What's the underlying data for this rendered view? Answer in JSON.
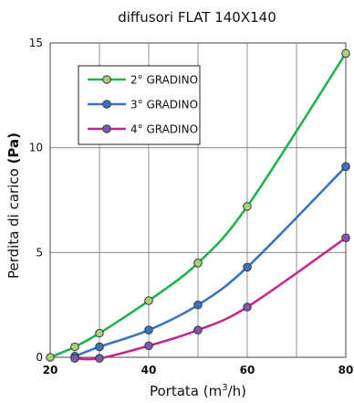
{
  "chart_data": {
    "type": "line",
    "title": "diffusori FLAT 140X140",
    "xlabel": {
      "prefix": "Portata (m",
      "sup": "3",
      "suffix": "/h)"
    },
    "ylabel": {
      "prefix": "Perdita di carico ",
      "bold": "(Pa)"
    },
    "xlim": [
      20,
      80
    ],
    "ylim": [
      0,
      15
    ],
    "x_ticks": [
      20,
      30,
      40,
      50,
      60,
      70,
      80
    ],
    "x_tick_labels": [
      "20",
      "40",
      "60",
      "80"
    ],
    "y_ticks": [
      0,
      5,
      10,
      15
    ],
    "grid": true,
    "legend_position": "top-left",
    "series": [
      {
        "name": "2° GRADINO",
        "color": "#20b24c",
        "marker_fill": "#a6d17a",
        "points": [
          [
            20,
            0
          ],
          [
            25,
            0.5
          ],
          [
            30,
            1.15
          ],
          [
            40,
            2.7
          ],
          [
            50,
            4.5
          ],
          [
            60,
            7.2
          ],
          [
            80,
            14.5
          ]
        ]
      },
      {
        "name": "3° GRADINO",
        "color": "#3b73c0",
        "marker_fill": "#3b73c0",
        "points": [
          [
            25,
            0.05
          ],
          [
            30,
            0.5
          ],
          [
            40,
            1.3
          ],
          [
            50,
            2.5
          ],
          [
            60,
            4.3
          ],
          [
            80,
            9.1
          ]
        ]
      },
      {
        "name": "4° GRADINO",
        "color": "#c0288a",
        "marker_fill": "#7d57b0",
        "points": [
          [
            25,
            -0.05
          ],
          [
            30,
            -0.05
          ],
          [
            40,
            0.55
          ],
          [
            50,
            1.3
          ],
          [
            60,
            2.4
          ],
          [
            80,
            5.7
          ]
        ]
      }
    ]
  }
}
